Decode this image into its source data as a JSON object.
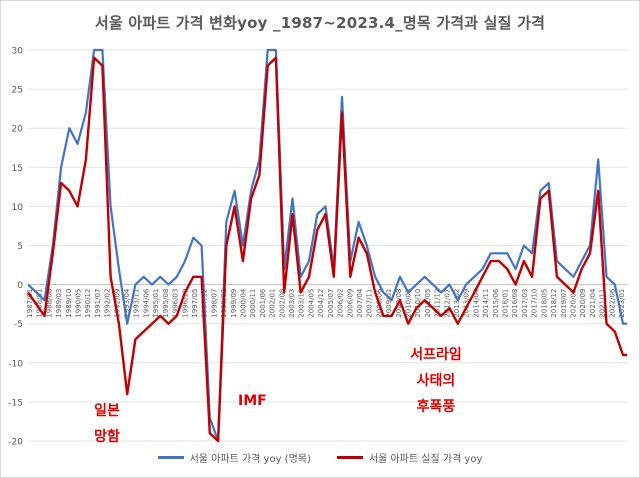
{
  "chart_data": {
    "type": "line",
    "title": "서울 아파트 가격 변화yoy _1987~2023.4_명목 가격과 실질 가격",
    "xlabel": "",
    "ylabel": "",
    "ylim": [
      -20,
      30
    ],
    "yticks": [
      30,
      25,
      20,
      15,
      10,
      5,
      0,
      -5,
      -10,
      -15,
      -20
    ],
    "grid": true,
    "legend_position": "bottom",
    "x_tick_labels": [
      "1987/01",
      "1988/01",
      "1988/08",
      "1989/03",
      "1989/10",
      "1990/05",
      "1990/12",
      "1991/07",
      "1992/02",
      "1992/09",
      "1993/04",
      "1993/11",
      "1994/06",
      "1995/01",
      "1995/08",
      "1996/03",
      "1996/10",
      "1997/05",
      "1997/12",
      "1998/07",
      "1999/02",
      "1999/09",
      "2000/04",
      "2000/11",
      "2001/06",
      "2002/01",
      "2002/08",
      "2003/03",
      "2003/10",
      "2004/05",
      "2004/12",
      "2005/07",
      "2006/02",
      "2006/09",
      "2007/04",
      "2007/11",
      "2008/06",
      "2009/01",
      "2009/08",
      "2010/03",
      "2010/10",
      "2011/05",
      "2011/12",
      "2012/07",
      "2013/02",
      "2013/09",
      "2014/04",
      "2014/11",
      "2015/06",
      "2016/01",
      "2016/08",
      "2017/03",
      "2017/10",
      "2018/05",
      "2018/12",
      "2019/07",
      "2020/02",
      "2020/09",
      "2021/04",
      "2021/11",
      "2022/06",
      "2023/01"
    ],
    "x": [
      "1987.0",
      "1988.0",
      "1988.5",
      "1989.0",
      "1989.5",
      "1990.0",
      "1990.5",
      "1991.0",
      "1991.5",
      "1992.0",
      "1992.5",
      "1993.0",
      "1993.5",
      "1994.0",
      "1994.5",
      "1995.0",
      "1995.5",
      "1996.0",
      "1996.5",
      "1997.0",
      "1997.5",
      "1998.0",
      "1998.5",
      "1999.0",
      "1999.5",
      "2000.0",
      "2000.5",
      "2001.0",
      "2001.5",
      "2002.0",
      "2002.5",
      "2003.0",
      "2003.5",
      "2004.0",
      "2004.5",
      "2005.0",
      "2005.5",
      "2006.0",
      "2006.5",
      "2007.0",
      "2007.5",
      "2008.0",
      "2008.5",
      "2009.0",
      "2009.5",
      "2010.0",
      "2010.5",
      "2011.0",
      "2011.5",
      "2012.0",
      "2012.5",
      "2013.0",
      "2013.5",
      "2014.0",
      "2014.5",
      "2015.0",
      "2015.5",
      "2016.0",
      "2016.5",
      "2017.0",
      "2017.5",
      "2018.0",
      "2018.5",
      "2019.0",
      "2019.5",
      "2020.0",
      "2020.5",
      "2021.0",
      "2021.5",
      "2022.0",
      "2022.5",
      "2023.0",
      "2023.25"
    ],
    "series": [
      {
        "name": "서울 아파트 가격 yoy (명목)",
        "color": "#4472c4",
        "values": [
          0,
          -2,
          5,
          15,
          20,
          18,
          22,
          30,
          30,
          10,
          2,
          -5,
          0,
          1,
          0,
          1,
          0,
          1,
          3,
          6,
          5,
          -17,
          -20,
          8,
          12,
          5,
          12,
          16,
          30,
          30,
          2,
          11,
          1,
          3,
          9,
          10,
          2,
          24,
          3,
          8,
          5,
          1,
          -1,
          -2,
          1,
          -1,
          0,
          1,
          0,
          -1,
          0,
          -2,
          0,
          1,
          2,
          4,
          4,
          4,
          2,
          5,
          4,
          12,
          13,
          3,
          2,
          1,
          3,
          5,
          16,
          1,
          0,
          -5,
          -5
        ]
      },
      {
        "name": "서울 아파트 실질 가격 yoy",
        "color": "#c00000",
        "values": [
          -1,
          -4,
          4,
          13,
          12,
          10,
          16,
          29,
          28,
          1,
          -5,
          -14,
          -7,
          -6,
          -5,
          -4,
          -5,
          -4,
          -1,
          1,
          1,
          -19,
          -20,
          5,
          10,
          3,
          11,
          14,
          28,
          29,
          -1,
          9,
          -1,
          1,
          7,
          9,
          1,
          22,
          1,
          6,
          4,
          -1,
          -4,
          -4,
          -2,
          -5,
          -3,
          -2,
          -3,
          -4,
          -3,
          -5,
          -3,
          -1,
          1,
          3,
          3,
          2,
          0,
          3,
          1,
          11,
          12,
          1,
          0,
          -1,
          2,
          4,
          12,
          -5,
          -6,
          -9,
          -9
        ]
      }
    ],
    "annotations": [
      {
        "text": "일본\n망함",
        "x": "1991.5",
        "y": -16
      },
      {
        "text": "IMF",
        "x": "1999.0",
        "y": -15
      },
      {
        "text": "서프라임\n사태의\n후폭풍",
        "x": "2011.0",
        "y": -9
      }
    ]
  }
}
